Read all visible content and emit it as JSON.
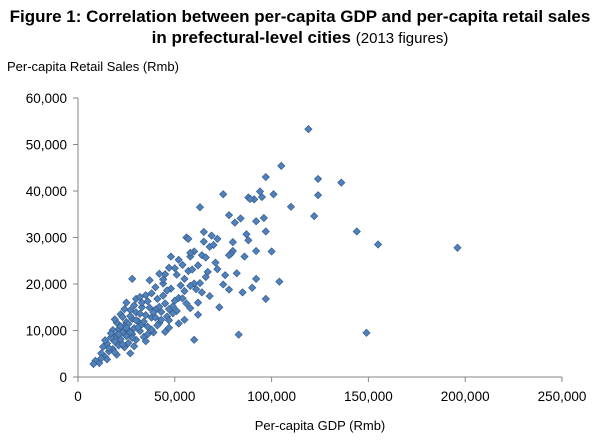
{
  "chart_data": {
    "type": "scatter",
    "title_main": "Figure 1: Correlation between per-capita GDP and per-capita retail sales in prefectural-level cities",
    "title_sub": "(2013 figures)",
    "xlabel": "Per-capita GDP (Rmb)",
    "ylabel": "Per-capita Retail Sales (Rmb)",
    "xlim": [
      0,
      250000
    ],
    "ylim": [
      0,
      60000
    ],
    "xticks": [
      0,
      50000,
      100000,
      150000,
      200000,
      250000
    ],
    "xtick_labels": [
      "0",
      "50,000",
      "100,000",
      "150,000",
      "200,000",
      "250,000"
    ],
    "yticks": [
      0,
      10000,
      20000,
      30000,
      40000,
      50000,
      60000
    ],
    "ytick_labels": [
      "0",
      "10,000",
      "20,000",
      "30,000",
      "40,000",
      "50,000",
      "60,000"
    ],
    "grid": false,
    "legend": "none",
    "marker_color": "#4f81bd",
    "marker_edge": "#385d8a",
    "marker": "diamond",
    "points": [
      [
        119000,
        53300
      ],
      [
        105000,
        45400
      ],
      [
        124000,
        42600
      ],
      [
        97000,
        43000
      ],
      [
        136000,
        41800
      ],
      [
        75000,
        39300
      ],
      [
        94000,
        39900
      ],
      [
        124000,
        39100
      ],
      [
        91000,
        38200
      ],
      [
        88000,
        38600
      ],
      [
        110000,
        36600
      ],
      [
        63000,
        36500
      ],
      [
        122000,
        34600
      ],
      [
        96000,
        34200
      ],
      [
        81000,
        33200
      ],
      [
        84000,
        34100
      ],
      [
        92000,
        33500
      ],
      [
        144000,
        31300
      ],
      [
        97000,
        31300
      ],
      [
        69000,
        30400
      ],
      [
        56000,
        30000
      ],
      [
        65000,
        29100
      ],
      [
        80000,
        29000
      ],
      [
        87000,
        30700
      ],
      [
        155000,
        28500
      ],
      [
        196000,
        27800
      ],
      [
        80000,
        27100
      ],
      [
        68000,
        28000
      ],
      [
        60000,
        27000
      ],
      [
        58000,
        25900
      ],
      [
        48000,
        25900
      ],
      [
        52000,
        25200
      ],
      [
        64000,
        26200
      ],
      [
        79000,
        26500
      ],
      [
        62000,
        24000
      ],
      [
        47000,
        23500
      ],
      [
        50000,
        23400
      ],
      [
        57000,
        22800
      ],
      [
        67000,
        22600
      ],
      [
        45000,
        22100
      ],
      [
        28000,
        21100
      ],
      [
        42000,
        22200
      ],
      [
        55000,
        21100
      ],
      [
        92000,
        21100
      ],
      [
        104000,
        20500
      ],
      [
        90000,
        19200
      ],
      [
        60000,
        20100
      ],
      [
        75000,
        19900
      ],
      [
        55000,
        18500
      ],
      [
        40000,
        19300
      ],
      [
        48000,
        19000
      ],
      [
        64000,
        18200
      ],
      [
        78000,
        18800
      ],
      [
        97000,
        16800
      ],
      [
        38000,
        18000
      ],
      [
        44000,
        17500
      ],
      [
        30000,
        16800
      ],
      [
        52000,
        17000
      ],
      [
        36000,
        16300
      ],
      [
        62000,
        16000
      ],
      [
        25000,
        16000
      ],
      [
        73000,
        15000
      ],
      [
        45000,
        15800
      ],
      [
        49000,
        15200
      ],
      [
        33000,
        15000
      ],
      [
        58000,
        14800
      ],
      [
        40000,
        14500
      ],
      [
        27000,
        14400
      ],
      [
        43000,
        14000
      ],
      [
        30000,
        13900
      ],
      [
        51000,
        14200
      ],
      [
        35000,
        13300
      ],
      [
        22000,
        13500
      ],
      [
        46000,
        13000
      ],
      [
        38000,
        12800
      ],
      [
        28000,
        12500
      ],
      [
        31000,
        12000
      ],
      [
        55000,
        12300
      ],
      [
        25000,
        11800
      ],
      [
        42000,
        11600
      ],
      [
        20000,
        11700
      ],
      [
        33000,
        11300
      ],
      [
        24000,
        11000
      ],
      [
        36000,
        10800
      ],
      [
        29000,
        10500
      ],
      [
        21000,
        10300
      ],
      [
        47000,
        10600
      ],
      [
        26000,
        10000
      ],
      [
        18000,
        10100
      ],
      [
        32000,
        9900
      ],
      [
        23000,
        9600
      ],
      [
        39000,
        9600
      ],
      [
        28000,
        9200
      ],
      [
        20000,
        9000
      ],
      [
        25000,
        8800
      ],
      [
        34000,
        8600
      ],
      [
        17000,
        8500
      ],
      [
        22000,
        8100
      ],
      [
        30000,
        8000
      ],
      [
        19000,
        7600
      ],
      [
        26000,
        7300
      ],
      [
        15000,
        7200
      ],
      [
        21000,
        6800
      ],
      [
        24000,
        6400
      ],
      [
        13000,
        6500
      ],
      [
        18000,
        6000
      ],
      [
        16000,
        5500
      ],
      [
        27000,
        5100
      ],
      [
        12000,
        5100
      ],
      [
        20000,
        4800
      ],
      [
        14000,
        4300
      ],
      [
        9000,
        3500
      ],
      [
        11000,
        3000
      ],
      [
        8000,
        2800
      ],
      [
        15000,
        3800
      ],
      [
        60000,
        8000
      ],
      [
        83000,
        9100
      ],
      [
        149000,
        9500
      ],
      [
        37000,
        20800
      ],
      [
        53000,
        19700
      ],
      [
        44000,
        20100
      ],
      [
        66000,
        21500
      ],
      [
        71000,
        24600
      ],
      [
        59000,
        23100
      ],
      [
        50000,
        16400
      ],
      [
        41000,
        16800
      ],
      [
        35000,
        17600
      ],
      [
        47000,
        12200
      ],
      [
        52000,
        11500
      ],
      [
        62000,
        13400
      ],
      [
        45000,
        9700
      ],
      [
        38000,
        10200
      ],
      [
        32000,
        13600
      ],
      [
        29000,
        15400
      ],
      [
        23000,
        12900
      ],
      [
        34000,
        11900
      ],
      [
        40000,
        12800
      ],
      [
        31000,
        10700
      ],
      [
        27000,
        9600
      ],
      [
        36000,
        9200
      ],
      [
        19000,
        12400
      ],
      [
        24000,
        14600
      ],
      [
        33000,
        16000
      ],
      [
        42000,
        15100
      ],
      [
        56000,
        15800
      ],
      [
        68000,
        17400
      ],
      [
        72000,
        23200
      ],
      [
        85000,
        18200
      ],
      [
        58000,
        26700
      ],
      [
        63000,
        20200
      ],
      [
        46000,
        18600
      ],
      [
        39000,
        13900
      ],
      [
        30000,
        12200
      ],
      [
        26000,
        11400
      ],
      [
        22000,
        10900
      ],
      [
        28000,
        8400
      ],
      [
        17000,
        9400
      ],
      [
        14000,
        7900
      ],
      [
        23000,
        7000
      ],
      [
        19000,
        5300
      ],
      [
        12000,
        4000
      ],
      [
        29000,
        6600
      ],
      [
        35000,
        7700
      ],
      [
        16000,
        6200
      ],
      [
        21000,
        9200
      ],
      [
        37000,
        14900
      ],
      [
        43000,
        12300
      ],
      [
        49000,
        13700
      ],
      [
        54000,
        16900
      ],
      [
        61000,
        18900
      ],
      [
        76000,
        21900
      ],
      [
        86000,
        25900
      ],
      [
        70000,
        28400
      ],
      [
        66000,
        25700
      ],
      [
        54000,
        24100
      ],
      [
        32000,
        17200
      ],
      [
        44000,
        21000
      ],
      [
        51000,
        22000
      ],
      [
        27000,
        13100
      ],
      [
        25000,
        10600
      ],
      [
        41000,
        11100
      ],
      [
        47000,
        14600
      ],
      [
        58000,
        19600
      ],
      [
        82000,
        22300
      ],
      [
        88000,
        29400
      ],
      [
        78000,
        26200
      ],
      [
        92000,
        27100
      ],
      [
        100000,
        27000
      ],
      [
        101000,
        39300
      ],
      [
        95000,
        38700
      ],
      [
        89000,
        38300
      ],
      [
        78000,
        34800
      ],
      [
        72000,
        29700
      ],
      [
        65000,
        31200
      ],
      [
        57000,
        29700
      ]
    ]
  }
}
